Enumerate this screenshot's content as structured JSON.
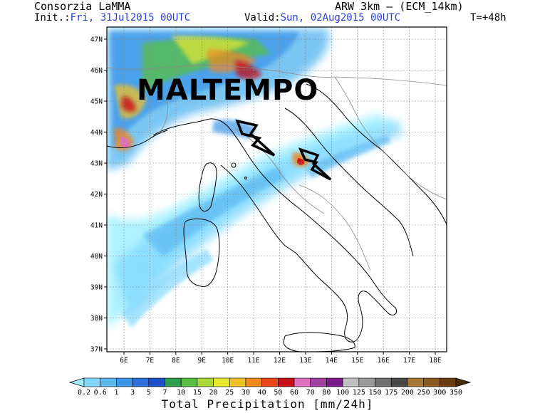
{
  "header": {
    "org": "Consorzia LaMMA",
    "init_label": "Init.:",
    "init_value": "Fri, 31Jul2015 00UTC",
    "valid_label": "Valid:",
    "valid_value": "Sun, 02Aug2015 00UTC",
    "model": "ARW 3km – (ECM_14km)",
    "lead": "T=+48h"
  },
  "overlay": {
    "text": "MALTEMPO"
  },
  "map": {
    "lat_labels": [
      "47N",
      "46N",
      "45N",
      "44N",
      "43N",
      "42N",
      "41N",
      "40N",
      "39N",
      "38N",
      "37N"
    ],
    "lon_labels": [
      "6E",
      "7E",
      "8E",
      "9E",
      "10E",
      "11E",
      "12E",
      "13E",
      "14E",
      "15E",
      "16E",
      "17E",
      "18E"
    ],
    "land_color": "#ffffff",
    "coast_color": "#000000",
    "border_color": "#8a8a8a"
  },
  "colorbar": {
    "title": "Total Precipitation [mm/24h]",
    "labels": [
      "0.2",
      "0.6",
      "1",
      "3",
      "5",
      "7",
      "10",
      "15",
      "20",
      "25",
      "30",
      "40",
      "50",
      "60",
      "70",
      "80",
      "100",
      "125",
      "150",
      "175",
      "200",
      "250",
      "300",
      "350"
    ],
    "colors": [
      "#a0f0ff",
      "#80d8ff",
      "#5ab8f0",
      "#3c96e8",
      "#2a70d8",
      "#1b50c8",
      "#2aa050",
      "#58c040",
      "#a8d838",
      "#e8e830",
      "#f0c028",
      "#f08820",
      "#e84818",
      "#c81018",
      "#e070c0",
      "#a040a0",
      "#7a1a8a",
      "#c0c0c0",
      "#9a9a9a",
      "#707070",
      "#484848",
      "#a87830",
      "#8a5a20",
      "#6a3a10",
      "#4a2a08"
    ]
  }
}
